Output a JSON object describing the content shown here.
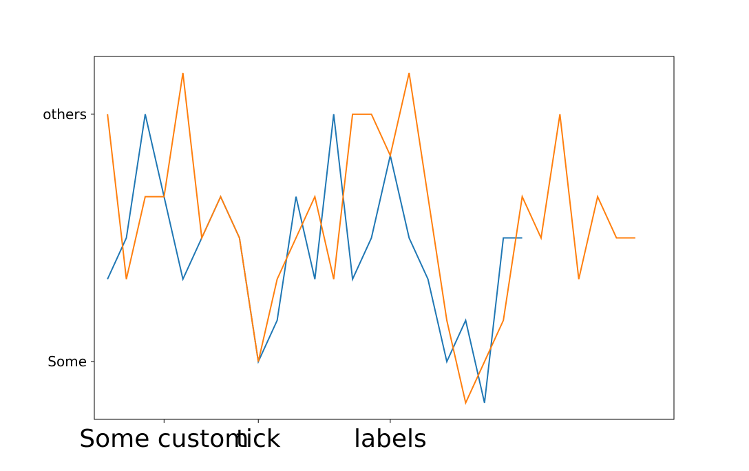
{
  "chart_data": {
    "type": "line",
    "title": "",
    "xlabel": "",
    "ylabel": "",
    "xlim": [
      -0.7,
      30.05
    ],
    "ylim": [
      -1.4,
      7.4
    ],
    "grid": false,
    "legend": "none",
    "yticks": [
      {
        "value": 0,
        "label": "Some"
      },
      {
        "value": 6,
        "label": "others"
      }
    ],
    "xticks": [
      {
        "value": 3,
        "label": "Some custom"
      },
      {
        "value": 8,
        "label": "tick"
      },
      {
        "value": 15,
        "label": "labels"
      }
    ],
    "series": [
      {
        "color": "#1f77b4",
        "x": [
          0,
          1,
          2,
          3,
          4,
          5,
          6,
          7,
          8,
          9,
          10,
          11,
          12,
          13,
          14,
          15,
          16,
          17,
          18,
          19,
          20,
          21,
          22
        ],
        "y": [
          2,
          3,
          6,
          4,
          2,
          3,
          4,
          3,
          0,
          1,
          4,
          2,
          6,
          2,
          3,
          5,
          3,
          2,
          0,
          1,
          -1,
          3,
          3
        ]
      },
      {
        "color": "#ff7f0e",
        "x": [
          0,
          1,
          2,
          3,
          4,
          5,
          6,
          7,
          8,
          9,
          10,
          11,
          12,
          13,
          14,
          15,
          16,
          17,
          18,
          19,
          20,
          21,
          22,
          23,
          24,
          25,
          26,
          27,
          28,
          29
        ],
        "y": [
          6,
          2,
          4,
          4,
          7,
          3,
          4,
          3,
          0,
          2,
          3,
          4,
          2,
          6,
          6,
          5,
          7,
          4,
          1,
          -1,
          0,
          1,
          4,
          3,
          6,
          2,
          4,
          3,
          3,
          null
        ]
      }
    ]
  }
}
